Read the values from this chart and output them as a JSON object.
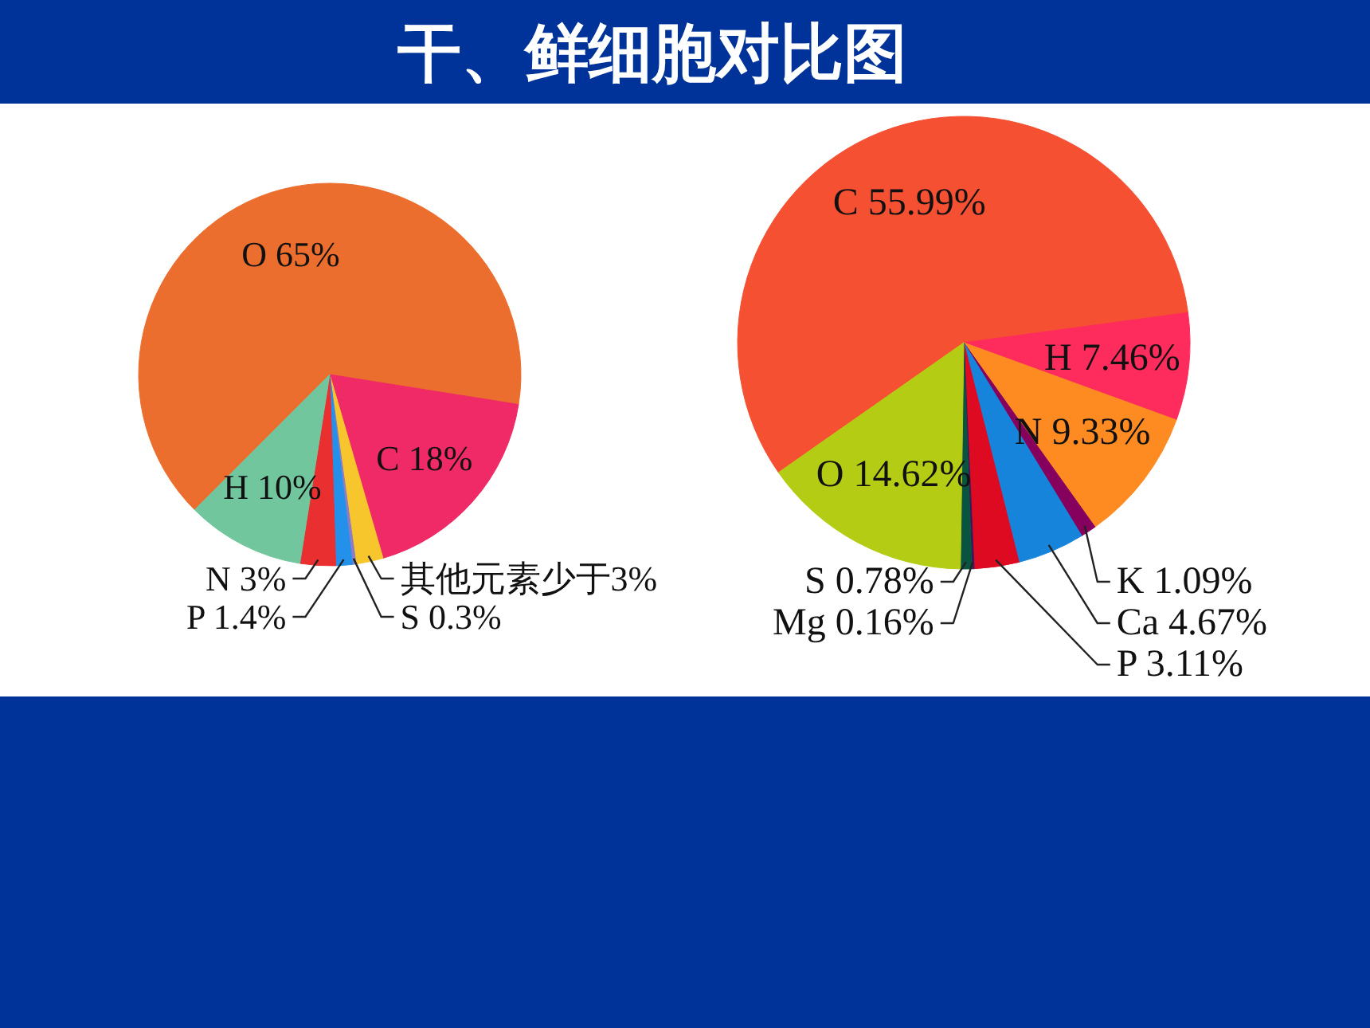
{
  "chart_data": [
    {
      "type": "other",
      "title": "干、鲜细胞对比图"
    },
    {
      "type": "pie",
      "categories": [
        "O 65%",
        "C 18%",
        "其他元素少于3%",
        "S 0.3%",
        "P 1.4%",
        "N 3%",
        "H 10%"
      ],
      "values": [
        65,
        18,
        2.3,
        0.3,
        1.4,
        3,
        10
      ],
      "colors": [
        "#ec6e2e",
        "#ef2a66",
        "#f6c62c",
        "#8e7cc4",
        "#2391ea",
        "#ea2f30",
        "#72c69e"
      ]
    },
    {
      "type": "pie",
      "categories": [
        "C 55.99%",
        "H 7.46%",
        "N 9.33%",
        "K 1.09%",
        "Ca 4.67%",
        "P 3.11%",
        "Mg 0.16%",
        "S 0.78%",
        "O 14.62%"
      ],
      "values": [
        55.99,
        7.46,
        9.33,
        1.09,
        4.67,
        3.11,
        0.16,
        0.78,
        14.62
      ],
      "colors": [
        "#f55032",
        "#fe2c5c",
        "#fe8a22",
        "#86005e",
        "#1584da",
        "#de0a22",
        "#3a1a5a",
        "#085440",
        "#b4cc14"
      ]
    }
  ]
}
